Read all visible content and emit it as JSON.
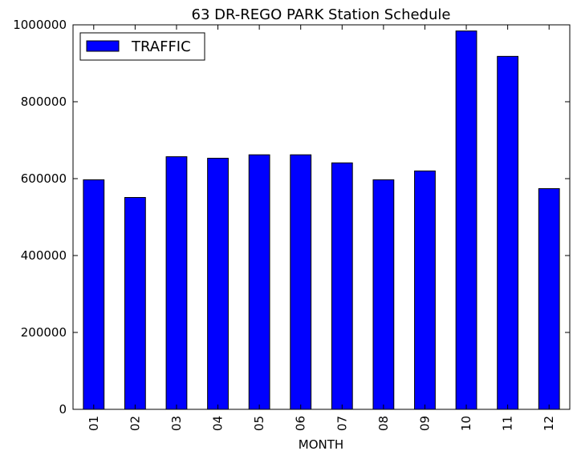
{
  "chart_data": {
    "type": "bar",
    "title": "63 DR-REGO PARK Station Schedule",
    "xlabel": "MONTH",
    "ylabel": "",
    "categories": [
      "01",
      "02",
      "03",
      "04",
      "05",
      "06",
      "07",
      "08",
      "09",
      "10",
      "11",
      "12"
    ],
    "series": [
      {
        "name": "TRAFFIC",
        "values": [
          597000,
          551000,
          657000,
          653000,
          662000,
          662000,
          641000,
          597000,
          620000,
          984000,
          918000,
          574000
        ]
      }
    ],
    "ylim": [
      0,
      1000000
    ],
    "yticks": [
      0,
      200000,
      400000,
      600000,
      800000,
      1000000
    ],
    "ytick_labels": [
      "0",
      "200000",
      "400000",
      "600000",
      "800000",
      "1000000"
    ],
    "legend_position": "top-left",
    "grid": false,
    "bar_color": "#0000ff"
  }
}
